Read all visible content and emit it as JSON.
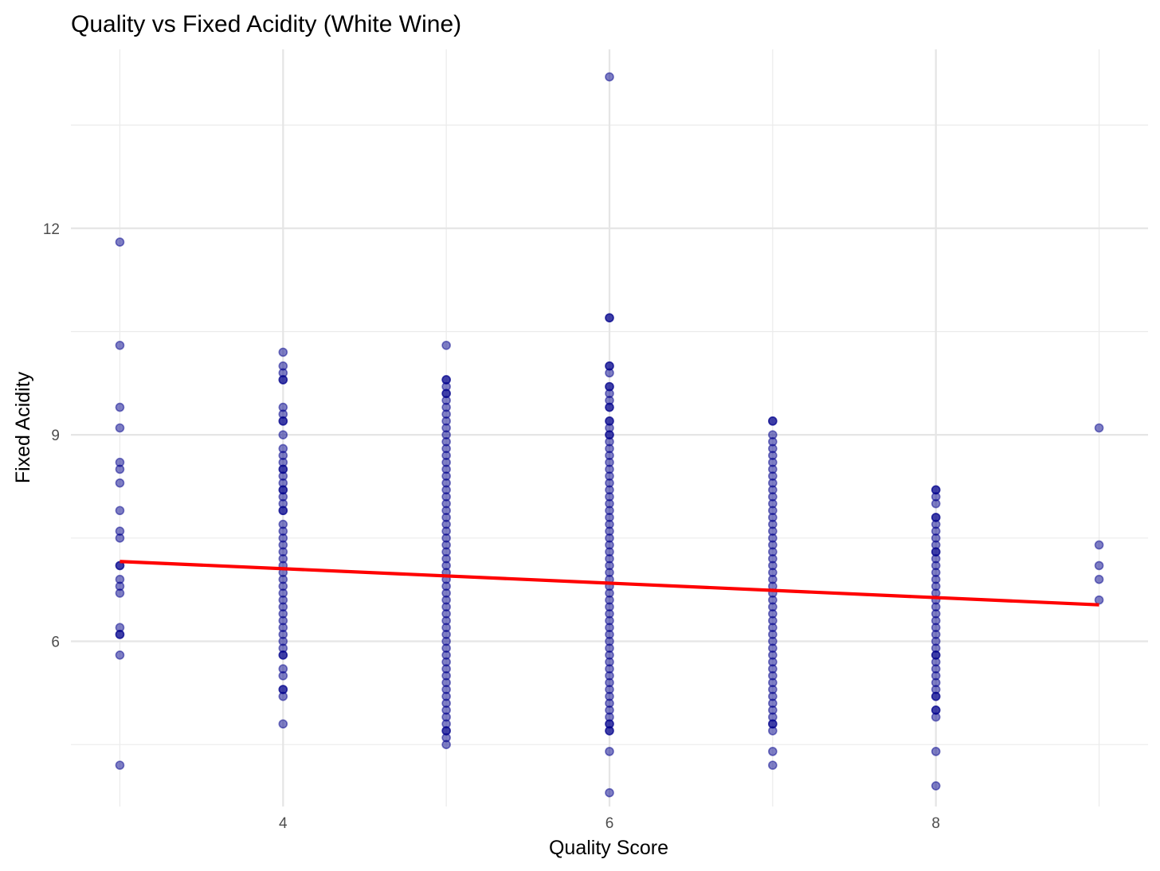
{
  "chart_data": {
    "type": "scatter",
    "title": "Quality vs Fixed Acidity (White Wine)",
    "xlabel": "Quality Score",
    "ylabel": "Fixed Acidity",
    "xlim": [
      2.7,
      9.3
    ],
    "ylim": [
      3.6,
      14.6
    ],
    "x_ticks": [
      4,
      6,
      8
    ],
    "x_tick_labels": [
      "4",
      "6",
      "8"
    ],
    "x_minor_ticks": [
      3,
      5,
      7,
      9
    ],
    "y_ticks": [
      6,
      9,
      12
    ],
    "y_tick_labels": [
      "6",
      "9",
      "12"
    ],
    "y_minor_ticks": [
      4.5,
      7.5,
      10.5,
      13.5
    ],
    "grid": true,
    "point_color": "#00008B",
    "point_opacity": 0.5,
    "line_color": "#FF0000",
    "series": [
      {
        "type": "scatter",
        "points": [
          [
            3,
            11.8
          ],
          [
            3,
            10.3
          ],
          [
            3,
            9.4
          ],
          [
            3,
            9.1
          ],
          [
            3,
            8.6
          ],
          [
            3,
            8.5
          ],
          [
            3,
            8.3
          ],
          [
            3,
            7.9
          ],
          [
            3,
            7.6
          ],
          [
            3,
            7.5
          ],
          [
            3,
            7.1
          ],
          [
            3,
            7.1
          ],
          [
            3,
            6.9
          ],
          [
            3,
            6.8
          ],
          [
            3,
            6.7
          ],
          [
            3,
            6.2
          ],
          [
            3,
            6.1
          ],
          [
            3,
            6.1
          ],
          [
            3,
            5.8
          ],
          [
            3,
            4.2
          ],
          [
            4,
            10.2
          ],
          [
            4,
            10.0
          ],
          [
            4,
            9.9
          ],
          [
            4,
            9.8
          ],
          [
            4,
            9.8
          ],
          [
            4,
            9.4
          ],
          [
            4,
            9.3
          ],
          [
            4,
            9.2
          ],
          [
            4,
            9.2
          ],
          [
            4,
            9.0
          ],
          [
            4,
            8.8
          ],
          [
            4,
            8.7
          ],
          [
            4,
            8.6
          ],
          [
            4,
            8.5
          ],
          [
            4,
            8.5
          ],
          [
            4,
            8.4
          ],
          [
            4,
            8.3
          ],
          [
            4,
            8.2
          ],
          [
            4,
            8.2
          ],
          [
            4,
            8.1
          ],
          [
            4,
            8.0
          ],
          [
            4,
            7.9
          ],
          [
            4,
            7.9
          ],
          [
            4,
            7.7
          ],
          [
            4,
            7.6
          ],
          [
            4,
            7.5
          ],
          [
            4,
            7.4
          ],
          [
            4,
            7.3
          ],
          [
            4,
            7.2
          ],
          [
            4,
            7.1
          ],
          [
            4,
            7.0
          ],
          [
            4,
            6.9
          ],
          [
            4,
            6.8
          ],
          [
            4,
            6.7
          ],
          [
            4,
            6.6
          ],
          [
            4,
            6.5
          ],
          [
            4,
            6.4
          ],
          [
            4,
            6.3
          ],
          [
            4,
            6.2
          ],
          [
            4,
            6.1
          ],
          [
            4,
            6.0
          ],
          [
            4,
            5.9
          ],
          [
            4,
            5.8
          ],
          [
            4,
            5.8
          ],
          [
            4,
            5.6
          ],
          [
            4,
            5.5
          ],
          [
            4,
            5.3
          ],
          [
            4,
            5.3
          ],
          [
            4,
            5.2
          ],
          [
            4,
            4.8
          ],
          [
            5,
            10.3
          ],
          [
            5,
            9.8
          ],
          [
            5,
            9.8
          ],
          [
            5,
            9.7
          ],
          [
            5,
            9.6
          ],
          [
            5,
            9.6
          ],
          [
            5,
            9.5
          ],
          [
            5,
            9.4
          ],
          [
            5,
            9.3
          ],
          [
            5,
            9.2
          ],
          [
            5,
            9.1
          ],
          [
            5,
            9.0
          ],
          [
            5,
            8.9
          ],
          [
            5,
            8.8
          ],
          [
            5,
            8.7
          ],
          [
            5,
            8.6
          ],
          [
            5,
            8.5
          ],
          [
            5,
            8.4
          ],
          [
            5,
            8.3
          ],
          [
            5,
            8.2
          ],
          [
            5,
            8.1
          ],
          [
            5,
            8.0
          ],
          [
            5,
            7.9
          ],
          [
            5,
            7.8
          ],
          [
            5,
            7.7
          ],
          [
            5,
            7.6
          ],
          [
            5,
            7.5
          ],
          [
            5,
            7.4
          ],
          [
            5,
            7.3
          ],
          [
            5,
            7.2
          ],
          [
            5,
            7.1
          ],
          [
            5,
            7.0
          ],
          [
            5,
            6.9
          ],
          [
            5,
            6.8
          ],
          [
            5,
            6.7
          ],
          [
            5,
            6.6
          ],
          [
            5,
            6.5
          ],
          [
            5,
            6.4
          ],
          [
            5,
            6.3
          ],
          [
            5,
            6.2
          ],
          [
            5,
            6.1
          ],
          [
            5,
            6.0
          ],
          [
            5,
            5.9
          ],
          [
            5,
            5.8
          ],
          [
            5,
            5.7
          ],
          [
            5,
            5.6
          ],
          [
            5,
            5.5
          ],
          [
            5,
            5.4
          ],
          [
            5,
            5.3
          ],
          [
            5,
            5.2
          ],
          [
            5,
            5.1
          ],
          [
            5,
            5.0
          ],
          [
            5,
            4.9
          ],
          [
            5,
            4.8
          ],
          [
            5,
            4.7
          ],
          [
            5,
            4.7
          ],
          [
            5,
            4.6
          ],
          [
            5,
            4.5
          ],
          [
            6,
            14.2
          ],
          [
            6,
            10.7
          ],
          [
            6,
            10.7
          ],
          [
            6,
            10.0
          ],
          [
            6,
            10.0
          ],
          [
            6,
            9.9
          ],
          [
            6,
            9.7
          ],
          [
            6,
            9.7
          ],
          [
            6,
            9.6
          ],
          [
            6,
            9.5
          ],
          [
            6,
            9.4
          ],
          [
            6,
            9.4
          ],
          [
            6,
            9.2
          ],
          [
            6,
            9.2
          ],
          [
            6,
            9.1
          ],
          [
            6,
            9.0
          ],
          [
            6,
            9.0
          ],
          [
            6,
            8.9
          ],
          [
            6,
            8.8
          ],
          [
            6,
            8.7
          ],
          [
            6,
            8.6
          ],
          [
            6,
            8.5
          ],
          [
            6,
            8.4
          ],
          [
            6,
            8.3
          ],
          [
            6,
            8.2
          ],
          [
            6,
            8.1
          ],
          [
            6,
            8.0
          ],
          [
            6,
            7.9
          ],
          [
            6,
            7.8
          ],
          [
            6,
            7.7
          ],
          [
            6,
            7.6
          ],
          [
            6,
            7.5
          ],
          [
            6,
            7.4
          ],
          [
            6,
            7.3
          ],
          [
            6,
            7.2
          ],
          [
            6,
            7.1
          ],
          [
            6,
            7.0
          ],
          [
            6,
            6.9
          ],
          [
            6,
            6.8
          ],
          [
            6,
            6.7
          ],
          [
            6,
            6.6
          ],
          [
            6,
            6.5
          ],
          [
            6,
            6.4
          ],
          [
            6,
            6.3
          ],
          [
            6,
            6.2
          ],
          [
            6,
            6.1
          ],
          [
            6,
            6.0
          ],
          [
            6,
            5.9
          ],
          [
            6,
            5.8
          ],
          [
            6,
            5.7
          ],
          [
            6,
            5.6
          ],
          [
            6,
            5.5
          ],
          [
            6,
            5.4
          ],
          [
            6,
            5.3
          ],
          [
            6,
            5.2
          ],
          [
            6,
            5.1
          ],
          [
            6,
            5.0
          ],
          [
            6,
            4.9
          ],
          [
            6,
            4.8
          ],
          [
            6,
            4.8
          ],
          [
            6,
            4.7
          ],
          [
            6,
            4.7
          ],
          [
            6,
            4.4
          ],
          [
            6,
            3.8
          ],
          [
            7,
            9.2
          ],
          [
            7,
            9.2
          ],
          [
            7,
            9.0
          ],
          [
            7,
            8.9
          ],
          [
            7,
            8.8
          ],
          [
            7,
            8.7
          ],
          [
            7,
            8.6
          ],
          [
            7,
            8.5
          ],
          [
            7,
            8.4
          ],
          [
            7,
            8.3
          ],
          [
            7,
            8.2
          ],
          [
            7,
            8.1
          ],
          [
            7,
            8.0
          ],
          [
            7,
            7.9
          ],
          [
            7,
            7.8
          ],
          [
            7,
            7.7
          ],
          [
            7,
            7.6
          ],
          [
            7,
            7.5
          ],
          [
            7,
            7.4
          ],
          [
            7,
            7.3
          ],
          [
            7,
            7.2
          ],
          [
            7,
            7.1
          ],
          [
            7,
            7.0
          ],
          [
            7,
            6.9
          ],
          [
            7,
            6.8
          ],
          [
            7,
            6.7
          ],
          [
            7,
            6.6
          ],
          [
            7,
            6.5
          ],
          [
            7,
            6.4
          ],
          [
            7,
            6.3
          ],
          [
            7,
            6.2
          ],
          [
            7,
            6.1
          ],
          [
            7,
            6.0
          ],
          [
            7,
            5.9
          ],
          [
            7,
            5.8
          ],
          [
            7,
            5.7
          ],
          [
            7,
            5.6
          ],
          [
            7,
            5.5
          ],
          [
            7,
            5.4
          ],
          [
            7,
            5.3
          ],
          [
            7,
            5.2
          ],
          [
            7,
            5.1
          ],
          [
            7,
            5.0
          ],
          [
            7,
            4.9
          ],
          [
            7,
            4.8
          ],
          [
            7,
            4.8
          ],
          [
            7,
            4.7
          ],
          [
            7,
            4.4
          ],
          [
            7,
            4.2
          ],
          [
            8,
            8.2
          ],
          [
            8,
            8.2
          ],
          [
            8,
            8.1
          ],
          [
            8,
            8.0
          ],
          [
            8,
            7.8
          ],
          [
            8,
            7.8
          ],
          [
            8,
            7.7
          ],
          [
            8,
            7.6
          ],
          [
            8,
            7.5
          ],
          [
            8,
            7.4
          ],
          [
            8,
            7.3
          ],
          [
            8,
            7.3
          ],
          [
            8,
            7.2
          ],
          [
            8,
            7.1
          ],
          [
            8,
            7.0
          ],
          [
            8,
            6.9
          ],
          [
            8,
            6.8
          ],
          [
            8,
            6.7
          ],
          [
            8,
            6.6
          ],
          [
            8,
            6.5
          ],
          [
            8,
            6.4
          ],
          [
            8,
            6.3
          ],
          [
            8,
            6.2
          ],
          [
            8,
            6.1
          ],
          [
            8,
            6.0
          ],
          [
            8,
            5.9
          ],
          [
            8,
            5.8
          ],
          [
            8,
            5.8
          ],
          [
            8,
            5.7
          ],
          [
            8,
            5.6
          ],
          [
            8,
            5.5
          ],
          [
            8,
            5.4
          ],
          [
            8,
            5.3
          ],
          [
            8,
            5.2
          ],
          [
            8,
            5.2
          ],
          [
            8,
            5.0
          ],
          [
            8,
            5.0
          ],
          [
            8,
            4.9
          ],
          [
            8,
            4.4
          ],
          [
            8,
            3.9
          ],
          [
            9,
            9.1
          ],
          [
            9,
            7.4
          ],
          [
            9,
            7.1
          ],
          [
            9,
            6.9
          ],
          [
            9,
            6.6
          ]
        ]
      },
      {
        "type": "line",
        "points": [
          [
            3,
            7.16
          ],
          [
            9,
            6.53
          ]
        ]
      }
    ]
  }
}
